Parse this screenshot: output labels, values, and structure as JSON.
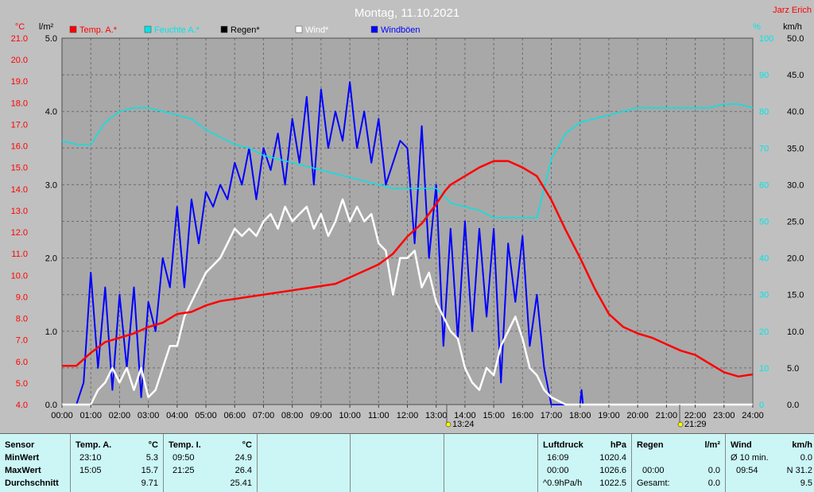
{
  "header": {
    "title": "Montag, 11.10.2021",
    "station": "Jarz Erich"
  },
  "legend": [
    {
      "label": "Temp. A.*",
      "color": "#ff0000"
    },
    {
      "label": "Feuchte A.*",
      "color": "#00e5e5"
    },
    {
      "label": "Regen*",
      "color": "#000000"
    },
    {
      "label": "Wind*",
      "color": "#ffffff"
    },
    {
      "label": "Windböen",
      "color": "#0000ff"
    }
  ],
  "axes": {
    "temp_unit": "°C",
    "rain_unit": "l/m²",
    "hum_unit": "%",
    "wind_unit": "km/h",
    "temp_ticks": [
      "21.0",
      "20.0",
      "19.0",
      "18.0",
      "17.0",
      "16.0",
      "15.0",
      "14.0",
      "13.0",
      "12.0",
      "11.0",
      "10.0",
      "9.0",
      "8.0",
      "7.0",
      "6.0",
      "5.0",
      "4.0"
    ],
    "rain_ticks": [
      "5.0",
      "4.0",
      "3.0",
      "2.0",
      "1.0",
      "0.0"
    ],
    "hum_ticks": [
      "100",
      "90",
      "80",
      "70",
      "60",
      "50",
      "40",
      "30",
      "20",
      "10",
      "0"
    ],
    "wind_ticks": [
      "50.0",
      "45.0",
      "40.0",
      "35.0",
      "30.0",
      "25.0",
      "20.0",
      "15.0",
      "10.0",
      "5.0",
      "0.0"
    ],
    "time_ticks": [
      "00:00",
      "01:00",
      "02:00",
      "03:00",
      "04:00",
      "05:00",
      "06:00",
      "07:00",
      "08:00",
      "09:00",
      "10:00",
      "11:00",
      "12:00",
      "13:00",
      "14:00",
      "15:00",
      "16:00",
      "17:00",
      "18:00",
      "19:00",
      "20:00",
      "21:00",
      "22:00",
      "23:00",
      "24:00"
    ]
  },
  "markers": {
    "sunrise": "13:24",
    "sunset": "21:29"
  },
  "chart_data": {
    "type": "line",
    "x_unit": "hour",
    "xlim": [
      0,
      24
    ],
    "series": [
      {
        "name": "Temp. A.*",
        "axis": "temp",
        "color": "#ff0000",
        "x": [
          0,
          0.5,
          1,
          1.5,
          2,
          2.5,
          3,
          3.5,
          4,
          4.5,
          5,
          5.5,
          6,
          6.5,
          7,
          7.5,
          8,
          8.5,
          9,
          9.5,
          10,
          10.5,
          11,
          11.5,
          12,
          12.5,
          13,
          13.3,
          13.5,
          14,
          14.5,
          15,
          15.5,
          16,
          16.5,
          17,
          17.5,
          18,
          18.5,
          19,
          19.5,
          20,
          20.5,
          21,
          21.5,
          22,
          22.5,
          23,
          23.5,
          24
        ],
        "y": [
          5.8,
          5.8,
          6.4,
          6.9,
          7.1,
          7.3,
          7.6,
          7.8,
          8.2,
          8.3,
          8.6,
          8.8,
          8.9,
          9.0,
          9.1,
          9.2,
          9.3,
          9.4,
          9.5,
          9.6,
          9.9,
          10.2,
          10.5,
          11.0,
          11.8,
          12.4,
          13.3,
          13.9,
          14.2,
          14.6,
          15.0,
          15.3,
          15.3,
          15.0,
          14.6,
          13.5,
          12.1,
          10.8,
          9.4,
          8.2,
          7.6,
          7.3,
          7.1,
          6.8,
          6.5,
          6.3,
          5.9,
          5.5,
          5.3,
          5.4
        ]
      },
      {
        "name": "Feuchte A.*",
        "axis": "hum",
        "color": "#00e5e5",
        "x": [
          0,
          0.5,
          1,
          1.5,
          2,
          2.5,
          3,
          3.5,
          4,
          4.5,
          5,
          5.5,
          6,
          6.5,
          7,
          7.5,
          8,
          8.5,
          9,
          9.5,
          10,
          10.5,
          11,
          11.5,
          12,
          12.5,
          13,
          13.5,
          14,
          14.5,
          15,
          15.5,
          16,
          16.5,
          17,
          17.5,
          18,
          18.5,
          19,
          19.5,
          20,
          20.5,
          21,
          21.5,
          22,
          22.5,
          23,
          23.5,
          24
        ],
        "y": [
          72,
          71,
          71,
          77,
          80,
          81,
          81,
          80,
          79,
          78,
          75,
          73,
          71,
          70,
          68,
          67,
          66,
          65,
          64,
          63,
          62,
          61,
          60,
          59,
          59,
          59,
          59,
          55,
          54,
          53,
          51,
          51,
          51,
          51,
          67,
          74,
          77,
          78,
          79,
          80,
          81,
          81,
          81,
          81,
          81,
          81,
          82,
          82,
          81
        ]
      },
      {
        "name": "Wind*",
        "axis": "wind",
        "color": "#ffffff",
        "x": [
          0,
          0.5,
          1,
          1.25,
          1.5,
          1.75,
          2,
          2.25,
          2.5,
          2.75,
          3,
          3.25,
          3.5,
          3.75,
          4,
          4.25,
          4.5,
          4.75,
          5,
          5.25,
          5.5,
          5.75,
          6,
          6.25,
          6.5,
          6.75,
          7,
          7.25,
          7.5,
          7.75,
          8,
          8.25,
          8.5,
          8.75,
          9,
          9.25,
          9.5,
          9.75,
          10,
          10.25,
          10.5,
          10.75,
          11,
          11.25,
          11.5,
          11.75,
          12,
          12.25,
          12.5,
          12.75,
          13,
          13.25,
          13.5,
          13.75,
          14,
          14.25,
          14.5,
          14.75,
          15,
          15.25,
          15.5,
          15.75,
          16,
          16.25,
          16.5,
          16.75,
          17,
          17.5,
          18,
          24
        ],
        "y": [
          0,
          0,
          0,
          2,
          3,
          5,
          3,
          5,
          2,
          5,
          1,
          2,
          5,
          8,
          8,
          12,
          14,
          16,
          18,
          19,
          20,
          22,
          24,
          23,
          24,
          23,
          25,
          26,
          24,
          27,
          25,
          26,
          27,
          24,
          26,
          23,
          25,
          28,
          25,
          27,
          25,
          26,
          22,
          21,
          15,
          20,
          20,
          21,
          16,
          18,
          14,
          12,
          10,
          9,
          5,
          3,
          2,
          5,
          4,
          8,
          10,
          12,
          9,
          5,
          4,
          2,
          1,
          0,
          0,
          0
        ]
      },
      {
        "name": "Windböen",
        "axis": "wind",
        "color": "#0000ff",
        "x": [
          0,
          0.5,
          0.75,
          1,
          1.25,
          1.5,
          1.75,
          2,
          2.25,
          2.5,
          2.75,
          3,
          3.25,
          3.5,
          3.75,
          4,
          4.25,
          4.5,
          4.75,
          5,
          5.25,
          5.5,
          5.75,
          6,
          6.25,
          6.5,
          6.75,
          7,
          7.25,
          7.5,
          7.75,
          8,
          8.25,
          8.5,
          8.75,
          9,
          9.25,
          9.5,
          9.75,
          10,
          10.25,
          10.5,
          10.75,
          11,
          11.25,
          11.5,
          11.75,
          12,
          12.25,
          12.5,
          12.75,
          13,
          13.25,
          13.5,
          13.75,
          14,
          14.25,
          14.5,
          14.75,
          15,
          15.25,
          15.5,
          15.75,
          16,
          16.25,
          16.5,
          16.75,
          17,
          17.5,
          17.75,
          18,
          18.05,
          18.1,
          24
        ],
        "y": [
          0,
          0,
          3,
          18,
          5,
          16,
          2,
          15,
          5,
          16,
          1,
          14,
          10,
          20,
          16,
          27,
          16,
          28,
          22,
          29,
          27,
          30,
          28,
          33,
          30,
          35,
          28,
          35,
          32,
          37,
          30,
          39,
          33,
          42,
          30,
          43,
          35,
          40,
          36,
          44,
          35,
          40,
          33,
          39,
          30,
          33,
          36,
          35,
          22,
          38,
          20,
          30,
          8,
          24,
          9,
          25,
          10,
          24,
          12,
          24,
          3,
          22,
          14,
          23,
          8,
          15,
          5,
          0,
          0,
          0,
          0,
          2,
          0,
          0
        ]
      }
    ]
  },
  "stats": {
    "sensor": {
      "header": "Sensor",
      "rows": [
        "MinWert",
        "MaxWert",
        "Durchschnitt"
      ]
    },
    "temp_a": {
      "header": "Temp. A.",
      "unit": "°C",
      "min_time": "23:10",
      "min": "5.3",
      "max_time": "15:05",
      "max": "15.7",
      "avg": "9.71"
    },
    "temp_i": {
      "header": "Temp. I.",
      "unit": "°C",
      "min_time": "09:50",
      "min": "24.9",
      "max_time": "21:25",
      "max": "26.4",
      "avg": "25.41"
    },
    "pressure": {
      "header": "Luftdruck",
      "unit": "hPa",
      "min_time": "16:09",
      "min": "1020.4",
      "max_time": "00:00",
      "max": "1026.6",
      "trend_label": "^0.9hPa/h",
      "trend_value": "1022.5"
    },
    "rain": {
      "header": "Regen",
      "unit": "l/m²",
      "row1_time": "00:00",
      "row1_value": "0.0",
      "total_label": "Gesamt:",
      "total": "0.0"
    },
    "wind": {
      "header": "Wind",
      "unit": "km/h",
      "avg_label": "Ø 10 min.",
      "avg": "0.0",
      "max_time": "09:54",
      "max": "N 31.2",
      "mean": "9.5"
    }
  }
}
